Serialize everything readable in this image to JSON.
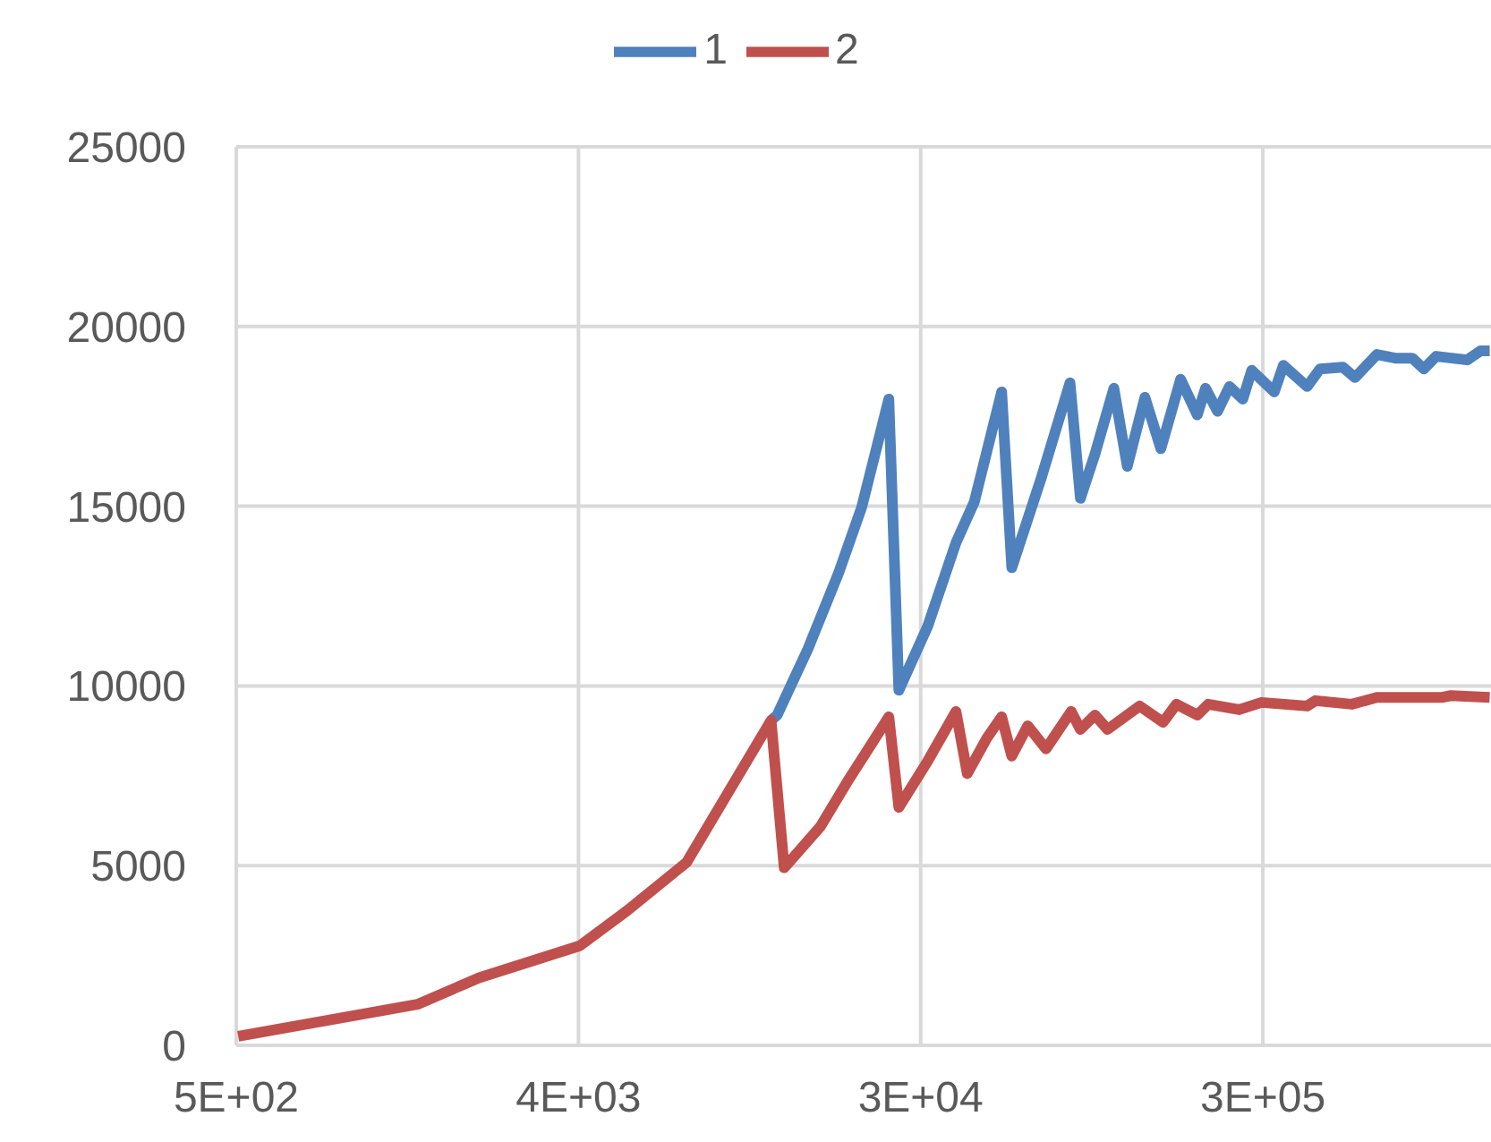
{
  "chart_data": {
    "type": "line",
    "log": "x",
    "xlim": [
      512,
      1048576
    ],
    "xticks": [
      {
        "value": 512,
        "label": "5E+02"
      },
      {
        "value": 4096,
        "label": "4E+03"
      },
      {
        "value": 32768,
        "label": "3E+04"
      },
      {
        "value": 262144,
        "label": "3E+05"
      }
    ],
    "ylim": [
      0,
      25000
    ],
    "yticks": [
      0,
      5000,
      10000,
      15000,
      20000,
      25000
    ],
    "grid": true,
    "legend": "top",
    "marker": "none",
    "line_style": "solid",
    "series": [
      {
        "name": "1",
        "color": "#4f81bd",
        "x": [
          13200,
          13700,
          16500,
          19900,
          22900,
          27000,
          28700,
          34200,
          40600,
          45400,
          53600,
          57000,
          68300,
          81200,
          86500,
          94500,
          106000,
          115000,
          128000,
          141000,
          159000,
          176000,
          185000,
          199000,
          214000,
          232000,
          245000,
          281000,
          297000,
          343000,
          371000,
          426000,
          459000,
          524000,
          586000,
          650000,
          697000,
          751000,
          907000,
          984000,
          1040000
        ],
        "values": [
          9040,
          9190,
          11020,
          13140,
          14970,
          17980,
          9880,
          11660,
          13980,
          15120,
          18180,
          13290,
          15810,
          18430,
          15220,
          16450,
          18280,
          16110,
          18030,
          16600,
          18530,
          17540,
          18280,
          17640,
          18330,
          17980,
          18780,
          18180,
          18920,
          18330,
          18820,
          18870,
          18580,
          19220,
          19120,
          19120,
          18820,
          19170,
          19070,
          19320,
          19320
        ]
      },
      {
        "name": "2",
        "color": "#c0504d",
        "x": [
          518,
          1540,
          2240,
          4130,
          5510,
          7900,
          13200,
          14300,
          17800,
          21200,
          27000,
          28700,
          34200,
          40600,
          43500,
          49000,
          53600,
          57000,
          62800,
          70200,
          81800,
          86500,
          94500,
          102000,
          124000,
          143000,
          155000,
          176000,
          188000,
          227000,
          260000,
          343000,
          361000,
          450000,
          524000,
          778000,
          822000,
          1040000
        ],
        "values": [
          250,
          1140,
          1880,
          2770,
          3750,
          5090,
          9040,
          4940,
          6080,
          7410,
          9140,
          6620,
          7910,
          9290,
          7560,
          8550,
          9140,
          8050,
          8890,
          8250,
          9290,
          8790,
          9190,
          8790,
          9440,
          8990,
          9490,
          9190,
          9490,
          9340,
          9540,
          9440,
          9590,
          9490,
          9680,
          9680,
          9730,
          9680
        ]
      }
    ]
  }
}
